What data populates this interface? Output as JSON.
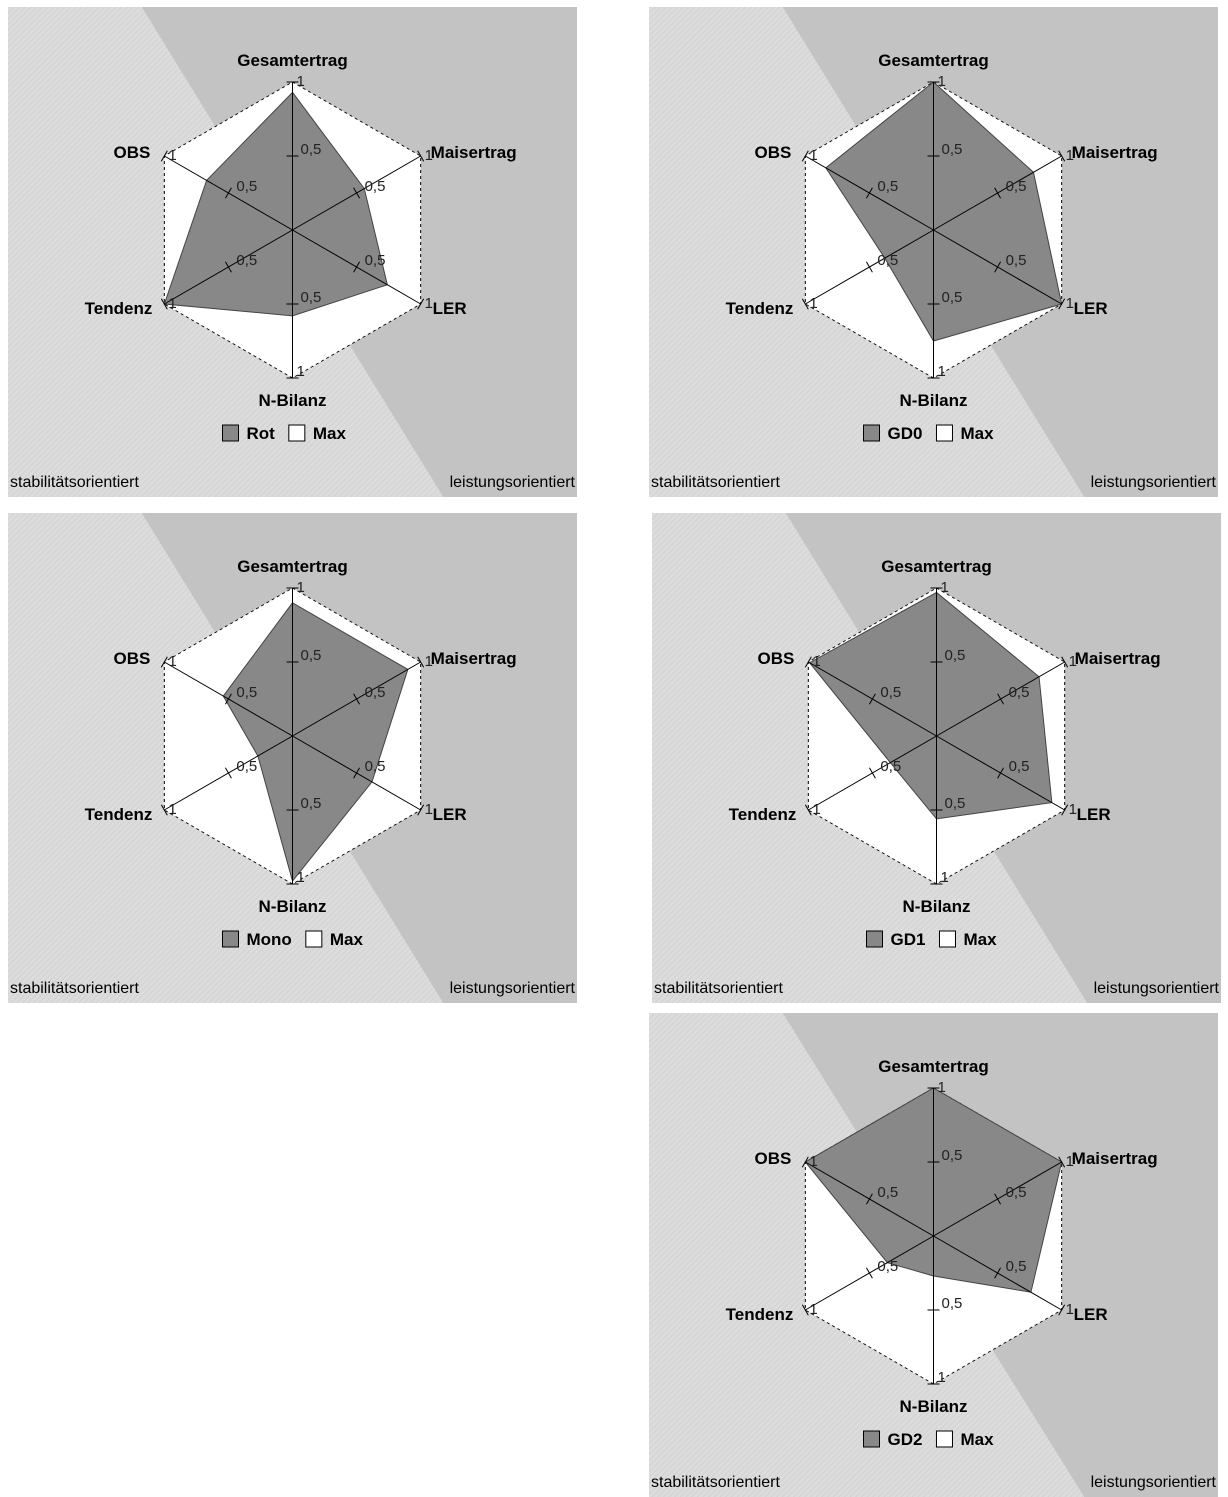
{
  "chart_data": [
    {
      "type": "radar",
      "axes": [
        "Gesamtertrag",
        "Maisertrag",
        "LER",
        "N-Bilanz",
        "Tendenz",
        "OBS"
      ],
      "ticks": [
        "0,5",
        "1"
      ],
      "rlim": [
        0,
        1
      ],
      "series": [
        {
          "name": "Rot",
          "values": [
            0.93,
            0.56,
            0.74,
            0.58,
            1.0,
            0.67
          ],
          "fill": "#888888"
        },
        {
          "name": "Max",
          "values": [
            1,
            1,
            1,
            1,
            1,
            1
          ],
          "fill": "#ffffff"
        }
      ],
      "region_left": "stabilitätsorientiert",
      "region_right": "leistungsorientiert",
      "legend_placement": "bottom-center"
    },
    {
      "type": "radar",
      "axes": [
        "Gesamtertrag",
        "Maisertrag",
        "LER",
        "N-Bilanz",
        "Tendenz",
        "OBS"
      ],
      "ticks": [
        "0,5",
        "1"
      ],
      "rlim": [
        0,
        1
      ],
      "series": [
        {
          "name": "GD0",
          "values": [
            1.0,
            0.78,
            1.0,
            0.75,
            0.38,
            0.84
          ],
          "fill": "#888888"
        },
        {
          "name": "Max",
          "values": [
            1,
            1,
            1,
            1,
            1,
            1
          ],
          "fill": "#ffffff"
        }
      ],
      "region_left": "stabilitätsorientiert",
      "region_right": "leistungsorientiert",
      "legend_placement": "bottom-center"
    },
    {
      "type": "radar",
      "axes": [
        "Gesamtertrag",
        "Maisertrag",
        "LER",
        "N-Bilanz",
        "Tendenz",
        "OBS"
      ],
      "ticks": [
        "0,5",
        "1"
      ],
      "rlim": [
        0,
        1
      ],
      "series": [
        {
          "name": "Mono",
          "values": [
            0.9,
            0.9,
            0.62,
            0.98,
            0.27,
            0.54
          ],
          "fill": "#888888"
        },
        {
          "name": "Max",
          "values": [
            1,
            1,
            1,
            1,
            1,
            1
          ],
          "fill": "#ffffff"
        }
      ],
      "region_left": "stabilitätsorientiert",
      "region_right": "leistungsorientiert",
      "legend_placement": "bottom-center"
    },
    {
      "type": "radar",
      "axes": [
        "Gesamtertrag",
        "Maisertrag",
        "LER",
        "N-Bilanz",
        "Tendenz",
        "OBS"
      ],
      "ticks": [
        "0,5",
        "1"
      ],
      "rlim": [
        0,
        1
      ],
      "series": [
        {
          "name": "GD1",
          "values": [
            0.97,
            0.8,
            0.9,
            0.56,
            0.36,
            0.99
          ],
          "fill": "#888888"
        },
        {
          "name": "Max",
          "values": [
            1,
            1,
            1,
            1,
            1,
            1
          ],
          "fill": "#ffffff"
        }
      ],
      "region_left": "stabilitätsorientiert",
      "region_right": "leistungsorientiert",
      "legend_placement": "bottom-center"
    },
    {
      "type": "radar",
      "axes": [
        "Gesamtertrag",
        "Maisertrag",
        "LER",
        "N-Bilanz",
        "Tendenz",
        "OBS"
      ],
      "ticks": [
        "0,5",
        "1"
      ],
      "rlim": [
        0,
        1
      ],
      "series": [
        {
          "name": "GD2",
          "values": [
            1.0,
            1.0,
            0.76,
            0.27,
            0.36,
            1.0
          ],
          "fill": "#888888"
        },
        {
          "name": "Max",
          "values": [
            1,
            1,
            1,
            1,
            1,
            1
          ],
          "fill": "#ffffff"
        }
      ],
      "region_left": "stabilitätsorientiert",
      "region_right": "leistungsorientiert",
      "legend_placement": "bottom-center"
    }
  ],
  "colors": {
    "stable_region": "#dcdcdc",
    "performance_region": "#c3c3c3",
    "series_fill": "#888888",
    "max_fill": "#ffffff"
  }
}
